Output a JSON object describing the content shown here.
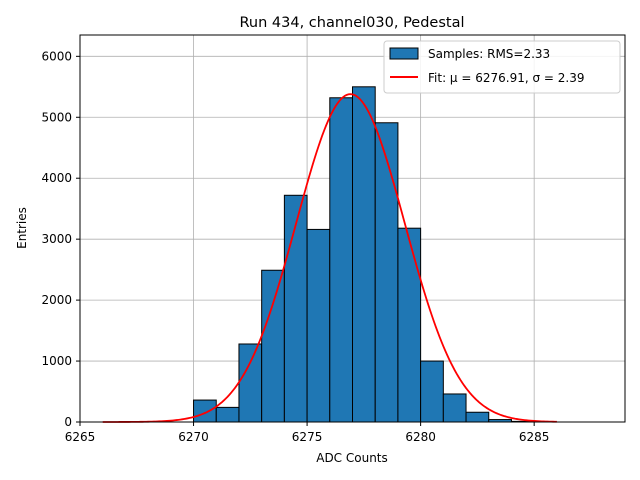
{
  "chart_data": {
    "type": "bar",
    "title": "Run 434, channel030, Pedestal",
    "xlabel": "ADC Counts",
    "ylabel": "Entries",
    "xlim": [
      6265,
      6289
    ],
    "ylim": [
      0,
      6350
    ],
    "xticks": [
      6265,
      6270,
      6275,
      6280,
      6285
    ],
    "yticks": [
      0,
      1000,
      2000,
      3000,
      4000,
      5000,
      6000
    ],
    "grid": true,
    "legend_position": "top-right",
    "histogram": {
      "name": "Samples: RMS=2.33",
      "color": "#1f77b4",
      "edgecolor": "#000000",
      "bin_edges": [
        6266,
        6267,
        6268,
        6269,
        6270,
        6271,
        6272,
        6273,
        6274,
        6275,
        6276,
        6277,
        6278,
        6279,
        6280,
        6281,
        6282,
        6283,
        6284,
        6285,
        6286
      ],
      "counts": [
        0,
        0,
        0,
        0,
        360,
        240,
        1280,
        2490,
        3720,
        3160,
        5320,
        5500,
        4910,
        3180,
        1000,
        460,
        160,
        40,
        10,
        0
      ]
    },
    "fit": {
      "name": "Fit: μ = 6276.91, σ = 2.39",
      "color": "#ff0000",
      "mu": 6276.91,
      "sigma": 2.39,
      "amplitude": 5380,
      "x_range": [
        6266,
        6286
      ]
    }
  }
}
